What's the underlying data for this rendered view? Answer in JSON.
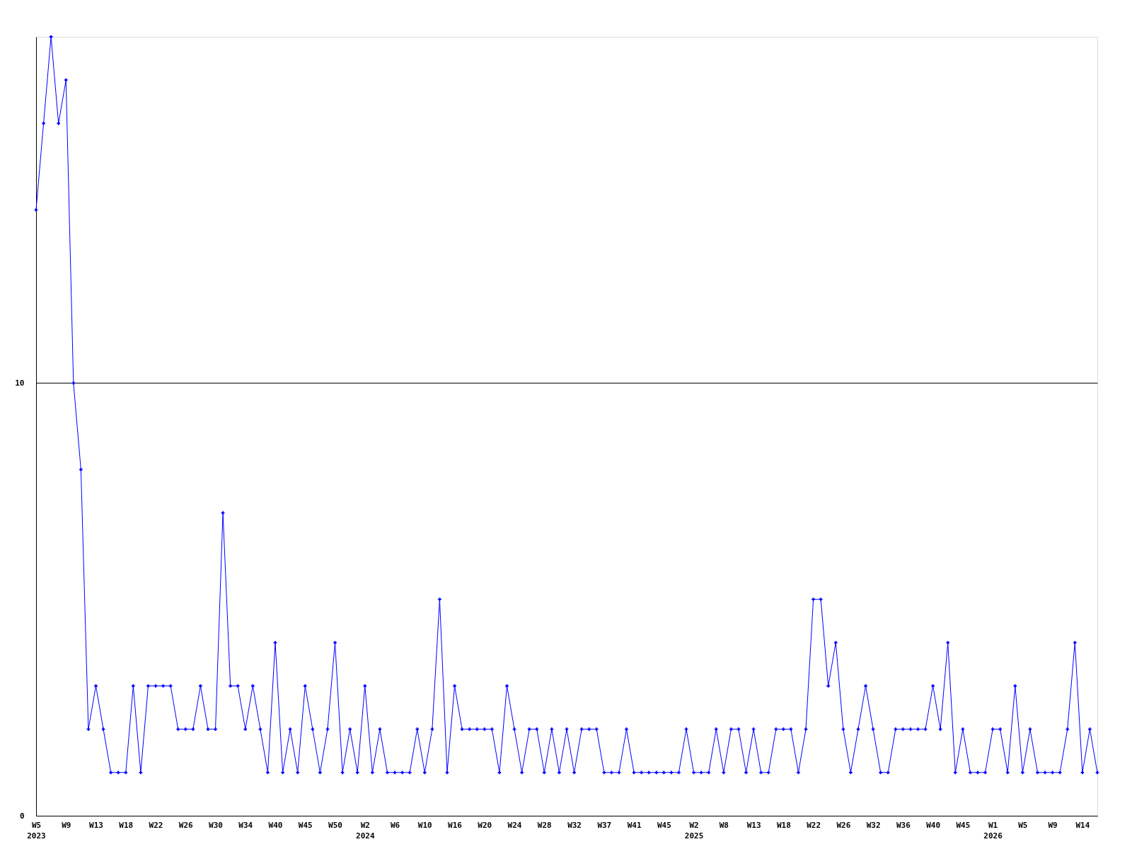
{
  "chart_data": {
    "type": "line",
    "categories": [
      "W5\n2023",
      null,
      null,
      null,
      "W9",
      null,
      null,
      null,
      "W13",
      null,
      null,
      null,
      "W18",
      null,
      null,
      null,
      "W22",
      null,
      null,
      null,
      "W26",
      null,
      null,
      null,
      "W30",
      null,
      null,
      null,
      "W34",
      null,
      null,
      null,
      "W40",
      null,
      null,
      null,
      "W45",
      null,
      null,
      null,
      "W50",
      null,
      null,
      null,
      "W2\n2024",
      null,
      null,
      null,
      "W6",
      null,
      null,
      null,
      "W10",
      null,
      null,
      null,
      "W16",
      null,
      null,
      null,
      "W20",
      null,
      null,
      null,
      "W24",
      null,
      null,
      null,
      "W28",
      null,
      null,
      null,
      "W32",
      null,
      null,
      null,
      "W37",
      null,
      null,
      null,
      "W41",
      null,
      null,
      null,
      "W45",
      null,
      null,
      null,
      "W2\n2025",
      null,
      null,
      null,
      "W8",
      null,
      null,
      null,
      "W13",
      null,
      null,
      null,
      "W18",
      null,
      null,
      null,
      "W22",
      null,
      null,
      null,
      "W26",
      null,
      null,
      null,
      "W32",
      null,
      null,
      null,
      "W36",
      null,
      null,
      null,
      "W40",
      null,
      null,
      null,
      "W45",
      null,
      null,
      null,
      "W1\n2026",
      null,
      null,
      null,
      "W5",
      null,
      null,
      null,
      "W9",
      null,
      null,
      null,
      "W14",
      null,
      null
    ],
    "series": [
      {
        "color": "#0000ff",
        "values": [
          14,
          16,
          18,
          16,
          17,
          10,
          8,
          2,
          3,
          2,
          1,
          1,
          1,
          3,
          1,
          3,
          3,
          3,
          3,
          2,
          2,
          2,
          3,
          2,
          2,
          7,
          3,
          3,
          2,
          3,
          2,
          1,
          4,
          1,
          2,
          1,
          3,
          2,
          1,
          2,
          4,
          1,
          2,
          1,
          3,
          1,
          2,
          1,
          1,
          1,
          1,
          2,
          1,
          2,
          5,
          1,
          3,
          2,
          2,
          2,
          2,
          2,
          1,
          3,
          2,
          1,
          2,
          2,
          1,
          2,
          1,
          2,
          1,
          2,
          2,
          2,
          1,
          1,
          1,
          2,
          1,
          1,
          1,
          1,
          1,
          1,
          1,
          2,
          1,
          1,
          1,
          2,
          1,
          2,
          2,
          1,
          2,
          1,
          1,
          2,
          2,
          2,
          1,
          2,
          5,
          5,
          3,
          4,
          2,
          1,
          2,
          3,
          2,
          1,
          1,
          2,
          2,
          2,
          2,
          2,
          3,
          2,
          4,
          1,
          2,
          1,
          1,
          1,
          2,
          2,
          1,
          3,
          1,
          2,
          1,
          1,
          1,
          1,
          2,
          4,
          1,
          2,
          1
        ]
      }
    ],
    "ylim": [
      0,
      18
    ],
    "yticks": [
      0,
      10
    ],
    "grid": "y",
    "marker": "cross",
    "line_style": "solid"
  }
}
